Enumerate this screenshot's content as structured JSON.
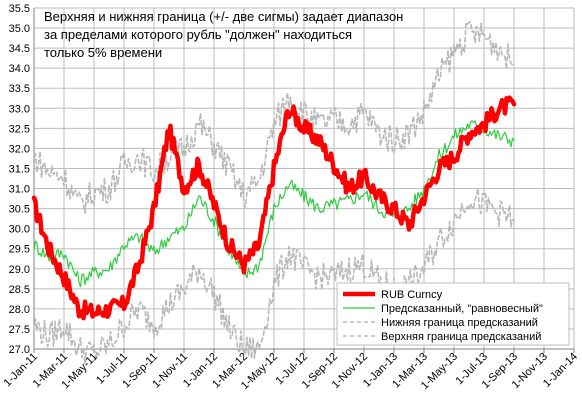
{
  "chart_data": {
    "type": "line",
    "title_lines": [
      "Верхняя и нижняя граница (+/- две сигмы) задает диапазон",
      "за пределами которого рубль \"должен\" находиться",
      "только 5% времени"
    ],
    "ylim": [
      27.0,
      35.5
    ],
    "y_ticks": [
      "27.0",
      "27.5",
      "28.0",
      "28.5",
      "29.0",
      "29.5",
      "30.0",
      "30.5",
      "31.0",
      "31.5",
      "32.0",
      "32.5",
      "33.0",
      "33.5",
      "34.0",
      "34.5",
      "35.0",
      "35.5"
    ],
    "x_ticks": [
      "1-Jan-11",
      "1-Mar-11",
      "1-May-11",
      "1-Jul-11",
      "1-Sep-11",
      "1-Nov-11",
      "1-Jan-12",
      "1-Mar-12",
      "1-May-12",
      "1-Jul-12",
      "1-Sep-12",
      "1-Nov-12",
      "1-Jan-13",
      "1-Mar-13",
      "1-May-13",
      "1-Jul-13",
      "1-Sep-13",
      "1-Nov-13",
      "1-Jan-14"
    ],
    "grid": true,
    "legend_position": "bottom-right",
    "x": [
      "2011-01",
      "2011-02",
      "2011-03",
      "2011-04",
      "2011-05",
      "2011-06",
      "2011-07",
      "2011-08",
      "2011-09",
      "2011-10",
      "2011-11",
      "2011-12",
      "2012-01",
      "2012-02",
      "2012-03",
      "2012-04",
      "2012-05",
      "2012-06",
      "2012-07",
      "2012-08",
      "2012-09",
      "2012-10",
      "2012-11",
      "2012-12",
      "2013-01",
      "2013-02",
      "2013-03",
      "2013-04",
      "2013-05",
      "2013-06",
      "2013-07",
      "2013-08",
      "2013-09"
    ],
    "series": [
      {
        "name": "RUB Curncy",
        "color": "#ff0000",
        "style": "solid-thick",
        "values": [
          30.6,
          29.5,
          28.8,
          28.0,
          27.9,
          28.0,
          28.1,
          29.1,
          30.5,
          32.5,
          31.0,
          31.6,
          30.6,
          29.6,
          29.1,
          29.6,
          31.5,
          33.0,
          32.5,
          32.2,
          31.6,
          31.0,
          31.3,
          30.8,
          30.5,
          30.1,
          30.8,
          31.5,
          31.8,
          32.4,
          32.6,
          33.0,
          33.1
        ]
      },
      {
        "name": "Предсказанный, \"равновесный\"",
        "color": "#2ecc40",
        "style": "solid-thin",
        "values": [
          29.6,
          29.3,
          29.4,
          28.7,
          28.9,
          29.0,
          29.6,
          29.8,
          29.4,
          29.8,
          30.0,
          30.8,
          30.2,
          29.5,
          28.8,
          29.1,
          30.5,
          31.1,
          30.8,
          30.5,
          30.6,
          30.7,
          30.9,
          30.5,
          30.3,
          30.5,
          31.0,
          31.8,
          32.3,
          32.6,
          32.5,
          32.3,
          32.2
        ]
      },
      {
        "name": "Нижняя граница предсказаний",
        "color": "#b8b8b8",
        "style": "dashed",
        "values": [
          27.6,
          27.3,
          27.6,
          27.0,
          26.9,
          27.1,
          27.6,
          28.0,
          27.6,
          28.1,
          28.5,
          29.0,
          28.4,
          27.5,
          27.0,
          27.0,
          28.6,
          29.4,
          29.0,
          28.8,
          28.8,
          29.0,
          29.1,
          28.7,
          28.5,
          28.6,
          29.0,
          29.7,
          30.2,
          30.8,
          30.6,
          30.4,
          30.2
        ]
      },
      {
        "name": "Верхняя граница предсказаний",
        "color": "#b8b8b8",
        "style": "dashed",
        "values": [
          31.8,
          31.4,
          31.3,
          30.6,
          30.9,
          31.0,
          31.6,
          31.8,
          31.4,
          31.8,
          32.0,
          32.6,
          32.1,
          31.5,
          30.8,
          31.2,
          32.6,
          33.3,
          32.9,
          32.6,
          32.7,
          32.6,
          32.9,
          32.4,
          32.2,
          32.4,
          32.9,
          33.8,
          34.4,
          34.9,
          34.8,
          34.5,
          34.1
        ]
      }
    ]
  }
}
